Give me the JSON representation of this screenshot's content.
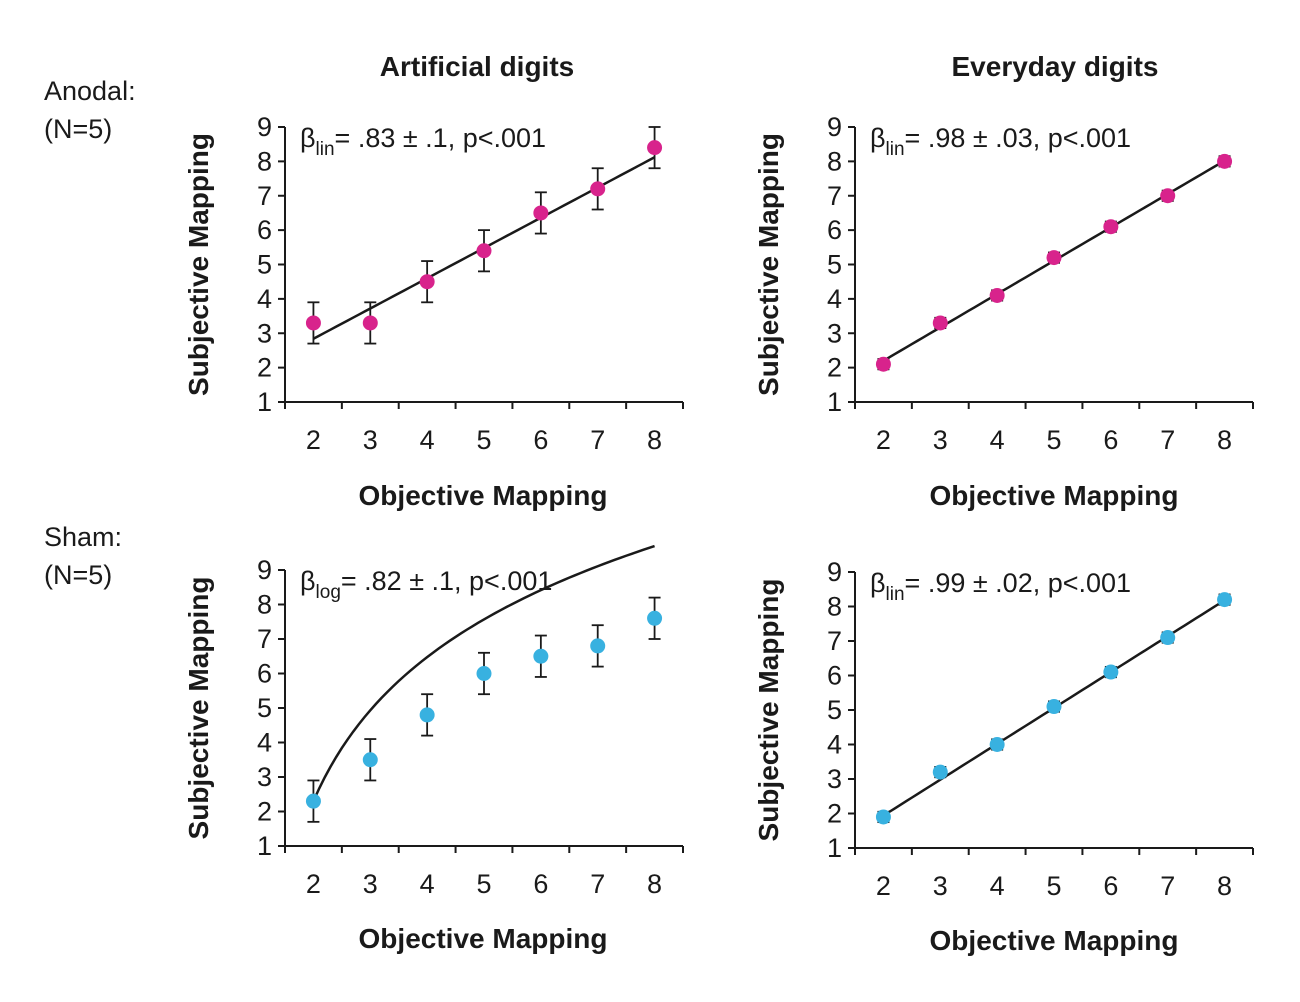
{
  "row_labels": [
    {
      "name": "Anodal:",
      "n": "(N=5)"
    },
    {
      "name": "Sham:",
      "n": "(N=5)"
    }
  ],
  "column_titles": [
    "Artificial digits",
    "Everyday digits"
  ],
  "colors": {
    "anodal": "#d8238c",
    "sham": "#38b1e0",
    "ink": "#1a1a1a"
  },
  "chart_data": [
    {
      "type": "scatter",
      "panel": "anodal-artificial",
      "xlabel": "Objective Mapping",
      "ylabel": "Subjective Mapping",
      "xticks": [
        "2",
        "3",
        "4",
        "5",
        "6",
        "7",
        "8"
      ],
      "yticks": [
        "1",
        "2",
        "3",
        "4",
        "5",
        "6",
        "7",
        "8",
        "9"
      ],
      "xlim": [
        1.5,
        8.5
      ],
      "ylim": [
        1,
        9
      ],
      "x": [
        2,
        3,
        4,
        5,
        6,
        7,
        8
      ],
      "y": [
        3.3,
        3.3,
        4.5,
        5.4,
        6.5,
        7.2,
        8.4
      ],
      "error": [
        0.6,
        0.6,
        0.6,
        0.6,
        0.6,
        0.6,
        0.6
      ],
      "fit": {
        "type": "linear",
        "slope": 0.88,
        "intercept": 1.08
      },
      "annotation": {
        "beta": "β",
        "sub": "lin",
        "text": "= .83 ± .1, p<.001"
      },
      "color": "#d8238c"
    },
    {
      "type": "scatter",
      "panel": "anodal-everyday",
      "xlabel": "Objective Mapping",
      "ylabel": "Subjective Mapping",
      "xticks": [
        "2",
        "3",
        "4",
        "5",
        "6",
        "7",
        "8"
      ],
      "yticks": [
        "1",
        "2",
        "3",
        "4",
        "5",
        "6",
        "7",
        "8",
        "9"
      ],
      "xlim": [
        1.5,
        8.5
      ],
      "ylim": [
        1,
        9
      ],
      "x": [
        2,
        3,
        4,
        5,
        6,
        7,
        8
      ],
      "y": [
        2.1,
        3.3,
        4.1,
        5.2,
        6.1,
        7.0,
        8.0
      ],
      "error": [
        0.15,
        0.15,
        0.15,
        0.15,
        0.15,
        0.15,
        0.15
      ],
      "fit": {
        "type": "linear",
        "slope": 0.97,
        "intercept": 0.26
      },
      "annotation": {
        "beta": "β",
        "sub": "lin",
        "text": "= .98 ± .03, p<.001"
      },
      "color": "#d8238c"
    },
    {
      "type": "scatter",
      "panel": "sham-artificial",
      "xlabel": "Objective Mapping",
      "ylabel": "Subjective Mapping",
      "xticks": [
        "2",
        "3",
        "4",
        "5",
        "6",
        "7",
        "8"
      ],
      "yticks": [
        "1",
        "2",
        "3",
        "4",
        "5",
        "6",
        "7",
        "8",
        "9"
      ],
      "xlim": [
        1.5,
        8.5
      ],
      "ylim": [
        1,
        9
      ],
      "x": [
        2,
        3,
        4,
        5,
        6,
        7,
        8
      ],
      "y": [
        2.3,
        3.5,
        4.8,
        6.0,
        6.5,
        6.8,
        7.6
      ],
      "error": [
        0.6,
        0.6,
        0.6,
        0.6,
        0.6,
        0.6,
        0.6
      ],
      "fit": {
        "type": "log",
        "a": 2.3,
        "b": 3.8
      },
      "annotation": {
        "beta": "β",
        "sub": "log",
        "text": "= .82 ± .1, p<.001"
      },
      "color": "#38b1e0"
    },
    {
      "type": "scatter",
      "panel": "sham-everyday",
      "xlabel": "Objective Mapping",
      "ylabel": "Subjective Mapping",
      "xticks": [
        "2",
        "3",
        "4",
        "5",
        "6",
        "7",
        "8"
      ],
      "yticks": [
        "1",
        "2",
        "3",
        "4",
        "5",
        "6",
        "7",
        "8",
        "9"
      ],
      "xlim": [
        1.5,
        8.5
      ],
      "ylim": [
        1,
        9
      ],
      "x": [
        2,
        3,
        4,
        5,
        6,
        7,
        8
      ],
      "y": [
        1.9,
        3.2,
        4.0,
        5.1,
        6.1,
        7.1,
        8.2
      ],
      "error": [
        0.15,
        0.15,
        0.15,
        0.15,
        0.15,
        0.15,
        0.15
      ],
      "fit": {
        "type": "linear",
        "slope": 1.04,
        "intercept": -0.14
      },
      "annotation": {
        "beta": "β",
        "sub": "lin",
        "text": "= .99 ± .02, p<.001"
      },
      "color": "#38b1e0"
    }
  ]
}
